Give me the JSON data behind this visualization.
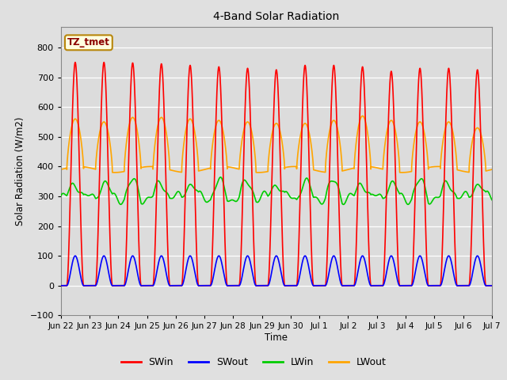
{
  "title": "4-Band Solar Radiation",
  "ylabel": "Solar Radiation (W/m2)",
  "xlabel": "Time",
  "annotation_label": "TZ_tmet",
  "annotation_color": "#8B0000",
  "annotation_bg": "#FFFFE0",
  "annotation_border": "#B8860B",
  "xlim_start": 0,
  "xlim_end": 15,
  "ylim": [
    -100,
    870
  ],
  "yticks": [
    -100,
    0,
    100,
    200,
    300,
    400,
    500,
    600,
    700,
    800
  ],
  "fig_bg_color": "#E0E0E0",
  "plot_bg": "#DCDCDC",
  "grid_color": "#FFFFFF",
  "num_days": 15,
  "SWin_peak": 750,
  "SWout_peak": 100,
  "LWin_base": 300,
  "LWin_amplitude": 50,
  "LWout_base": 390,
  "LWout_peak": 570,
  "colors": {
    "SWin": "#FF0000",
    "SWout": "#0000FF",
    "LWin": "#00CC00",
    "LWout": "#FFA500"
  },
  "linewidth": 1.2,
  "xtick_labels": [
    "Jun 22",
    "Jun 23",
    "Jun 24",
    "Jun 25",
    "Jun 26",
    "Jun 27",
    "Jun 28",
    "Jun 29",
    "Jun 30",
    "Jul 1",
    "Jul 2",
    "Jul 3",
    "Jul 4",
    "Jul 5",
    "Jul 6",
    "Jul 7"
  ],
  "xtick_positions": [
    0,
    1,
    2,
    3,
    4,
    5,
    6,
    7,
    8,
    9,
    10,
    11,
    12,
    13,
    14,
    15
  ],
  "legend_labels": [
    "SWin",
    "SWout",
    "LWin",
    "LWout"
  ],
  "legend_colors": [
    "#FF0000",
    "#0000FF",
    "#00CC00",
    "#FFA500"
  ]
}
